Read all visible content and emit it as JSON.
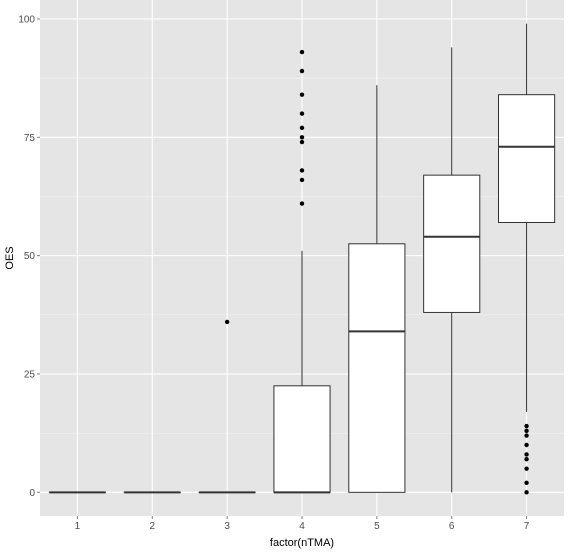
{
  "chart_data": {
    "type": "boxplot",
    "xlabel": "factor(nTMA)",
    "ylabel": "OES",
    "categories": [
      "1",
      "2",
      "3",
      "4",
      "5",
      "6",
      "7"
    ],
    "ylim": [
      -5,
      104
    ],
    "yticks": [
      "0",
      "25",
      "50",
      "75",
      "100"
    ],
    "grid": true,
    "panel_background": "#e5e5e5",
    "grid_color": "#ffffff",
    "box_fill": "#ffffff",
    "line_color": "#333333",
    "boxes": [
      {
        "category": "1",
        "lower_whisker": 0,
        "q1": 0,
        "median": 0,
        "q3": 0,
        "upper_whisker": 0,
        "outliers": []
      },
      {
        "category": "2",
        "lower_whisker": 0,
        "q1": 0,
        "median": 0,
        "q3": 0,
        "upper_whisker": 0,
        "outliers": []
      },
      {
        "category": "3",
        "lower_whisker": 0,
        "q1": 0,
        "median": 0,
        "q3": 0,
        "upper_whisker": 0,
        "outliers": [
          36
        ]
      },
      {
        "category": "4",
        "lower_whisker": 0,
        "q1": 0,
        "median": 0,
        "q3": 22.5,
        "upper_whisker": 51,
        "outliers": [
          61,
          66,
          68,
          74,
          75,
          77,
          80,
          84,
          89,
          93
        ]
      },
      {
        "category": "5",
        "lower_whisker": 0,
        "q1": 0,
        "median": 34,
        "q3": 52.5,
        "upper_whisker": 86,
        "outliers": []
      },
      {
        "category": "6",
        "lower_whisker": 0,
        "q1": 38,
        "median": 54,
        "q3": 67,
        "upper_whisker": 94,
        "outliers": []
      },
      {
        "category": "7",
        "lower_whisker": 17,
        "q1": 57,
        "median": 73,
        "q3": 84,
        "upper_whisker": 99,
        "outliers": [
          0,
          2,
          5,
          7,
          8,
          10,
          12,
          13,
          14
        ]
      }
    ]
  }
}
